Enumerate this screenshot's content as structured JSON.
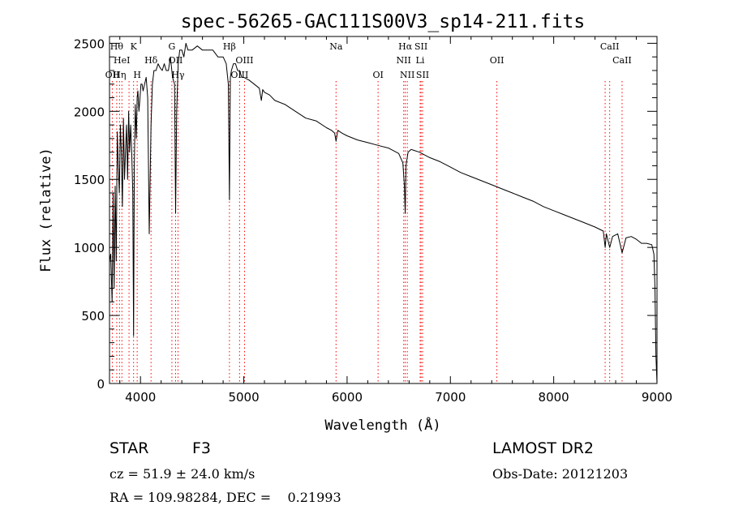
{
  "chart_data": {
    "type": "line",
    "title": "spec-56265-GAC111S00V3_sp14-211.fits",
    "xlabel": "Wavelength (Å)",
    "ylabel": "Flux (relative)",
    "xlim": [
      3700,
      9000
    ],
    "ylim": [
      0,
      2550
    ],
    "x_ticks": [
      4000,
      5000,
      6000,
      7000,
      8000,
      9000
    ],
    "x_tick_labels": [
      "4000",
      "5000",
      "6000",
      "7000",
      "8000",
      "9000"
    ],
    "y_ticks": [
      0,
      500,
      1000,
      1500,
      2000,
      2500
    ],
    "y_tick_labels": [
      "0",
      "500",
      "1000",
      "1500",
      "2000",
      "2500"
    ],
    "grid": false,
    "line_color": "#000000",
    "marker_color": "#ff0000",
    "series": [
      {
        "x": [
          3700,
          3712,
          3725,
          3735,
          3745,
          3755,
          3765,
          3775,
          3785,
          3795,
          3805,
          3815,
          3825,
          3835,
          3845,
          3855,
          3865,
          3875,
          3885,
          3895,
          3905,
          3915,
          3925,
          3933,
          3940,
          3950,
          3960,
          3968,
          3975,
          3985,
          3995,
          4005,
          4015,
          4025,
          4040,
          4055,
          4070,
          4085,
          4102,
          4115,
          4130,
          4150,
          4170,
          4190,
          4210,
          4230,
          4250,
          4270,
          4290,
          4310,
          4330,
          4340,
          4350,
          4365,
          4380,
          4400,
          4420,
          4440,
          4460,
          4480,
          4500,
          4550,
          4600,
          4650,
          4700,
          4750,
          4800,
          4830,
          4850,
          4861,
          4870,
          4880,
          4900,
          4920,
          4940,
          4960,
          4980,
          5000,
          5050,
          5100,
          5150,
          5170,
          5183,
          5200,
          5250,
          5300,
          5400,
          5500,
          5600,
          5700,
          5800,
          5850,
          5880,
          5893,
          5910,
          5950,
          6000,
          6100,
          6200,
          6300,
          6400,
          6500,
          6540,
          6555,
          6563,
          6570,
          6590,
          6620,
          6700,
          6800,
          6900,
          7000,
          7100,
          7200,
          7300,
          7400,
          7500,
          7600,
          7700,
          7800,
          7900,
          8000,
          8100,
          8200,
          8300,
          8400,
          8480,
          8498,
          8510,
          8542,
          8570,
          8620,
          8662,
          8700,
          8750,
          8800,
          8850,
          8900,
          8950,
          8970,
          8980,
          8990,
          9000
        ],
        "y": [
          900,
          950,
          600,
          1400,
          700,
          1450,
          900,
          1850,
          1600,
          1400,
          1900,
          1700,
          1300,
          1950,
          1500,
          1700,
          1900,
          1500,
          2000,
          1700,
          1900,
          1700,
          1400,
          350,
          1600,
          2050,
          1800,
          2100,
          2150,
          2000,
          2100,
          2200,
          2200,
          2150,
          2200,
          2250,
          2100,
          1100,
          1900,
          2200,
          2300,
          2300,
          2350,
          2320,
          2300,
          2350,
          2300,
          2300,
          2400,
          2250,
          2200,
          1250,
          2000,
          2350,
          2450,
          2450,
          2400,
          2500,
          2450,
          2450,
          2450,
          2480,
          2450,
          2450,
          2450,
          2400,
          2400,
          2350,
          2200,
          1350,
          2250,
          2300,
          2350,
          2350,
          2300,
          2300,
          2250,
          2250,
          2230,
          2200,
          2170,
          2080,
          2160,
          2140,
          2120,
          2080,
          2050,
          2000,
          1950,
          1930,
          1880,
          1860,
          1840,
          1780,
          1860,
          1840,
          1820,
          1790,
          1770,
          1750,
          1730,
          1690,
          1620,
          1450,
          1250,
          1600,
          1700,
          1720,
          1700,
          1660,
          1630,
          1590,
          1550,
          1520,
          1490,
          1460,
          1430,
          1400,
          1370,
          1340,
          1300,
          1270,
          1240,
          1210,
          1180,
          1150,
          1120,
          1000,
          1100,
          1000,
          1080,
          1100,
          960,
          1070,
          1080,
          1060,
          1030,
          1030,
          1020,
          950,
          700,
          200,
          0
        ]
      }
    ],
    "line_markers": [
      {
        "x": 3727,
        "labels": [
          "OII"
        ],
        "row": 3
      },
      {
        "x": 3770,
        "labels": [
          "Hθ"
        ],
        "row": 1
      },
      {
        "x": 3797,
        "labels": [
          "Hη"
        ],
        "row": 3
      },
      {
        "x": 3820,
        "labels": [
          "HeI"
        ],
        "row": 2
      },
      {
        "x": 3889,
        "labels": [],
        "row": 0
      },
      {
        "x": 3933,
        "labels": [
          "K"
        ],
        "row": 1
      },
      {
        "x": 3968,
        "labels": [
          "H"
        ],
        "row": 3
      },
      {
        "x": 4102,
        "labels": [
          "Hδ"
        ],
        "row": 2
      },
      {
        "x": 4304,
        "labels": [
          "G"
        ],
        "row": 1
      },
      {
        "x": 4340,
        "labels": [
          "OII"
        ],
        "row": 2
      },
      {
        "x": 4363,
        "labels": [
          "Hγ"
        ],
        "row": 3
      },
      {
        "x": 4861,
        "labels": [
          "Hβ"
        ],
        "row": 1
      },
      {
        "x": 4959,
        "labels": [
          "OIII"
        ],
        "row": 3
      },
      {
        "x": 5007,
        "labels": [
          "OIII"
        ],
        "row": 2
      },
      {
        "x": 5893,
        "labels": [
          "Na"
        ],
        "row": 1
      },
      {
        "x": 6300,
        "labels": [
          "OI"
        ],
        "row": 3
      },
      {
        "x": 6548,
        "labels": [
          "NII"
        ],
        "row": 2
      },
      {
        "x": 6563,
        "labels": [
          "Hα"
        ],
        "row": 1
      },
      {
        "x": 6583,
        "labels": [
          "NII"
        ],
        "row": 3
      },
      {
        "x": 6707,
        "labels": [
          "Li"
        ],
        "row": 2
      },
      {
        "x": 6716,
        "labels": [
          "SII"
        ],
        "row": 1
      },
      {
        "x": 6731,
        "labels": [
          "SII"
        ],
        "row": 3
      },
      {
        "x": 7450,
        "labels": [
          "OII"
        ],
        "row": 2
      },
      {
        "x": 8498,
        "labels": [],
        "row": 0
      },
      {
        "x": 8542,
        "labels": [
          "CaII"
        ],
        "row": 1
      },
      {
        "x": 8662,
        "labels": [
          "CaII"
        ],
        "row": 2
      }
    ]
  },
  "info": {
    "object_class": "STAR",
    "subclass": "F3",
    "survey": "LAMOST DR2",
    "redshift": "cz = 51.9 ± 24.0 km/s",
    "obs_date": "Obs-Date: 20121203",
    "coords": "RA = 109.98284, DEC =    0.21993"
  }
}
